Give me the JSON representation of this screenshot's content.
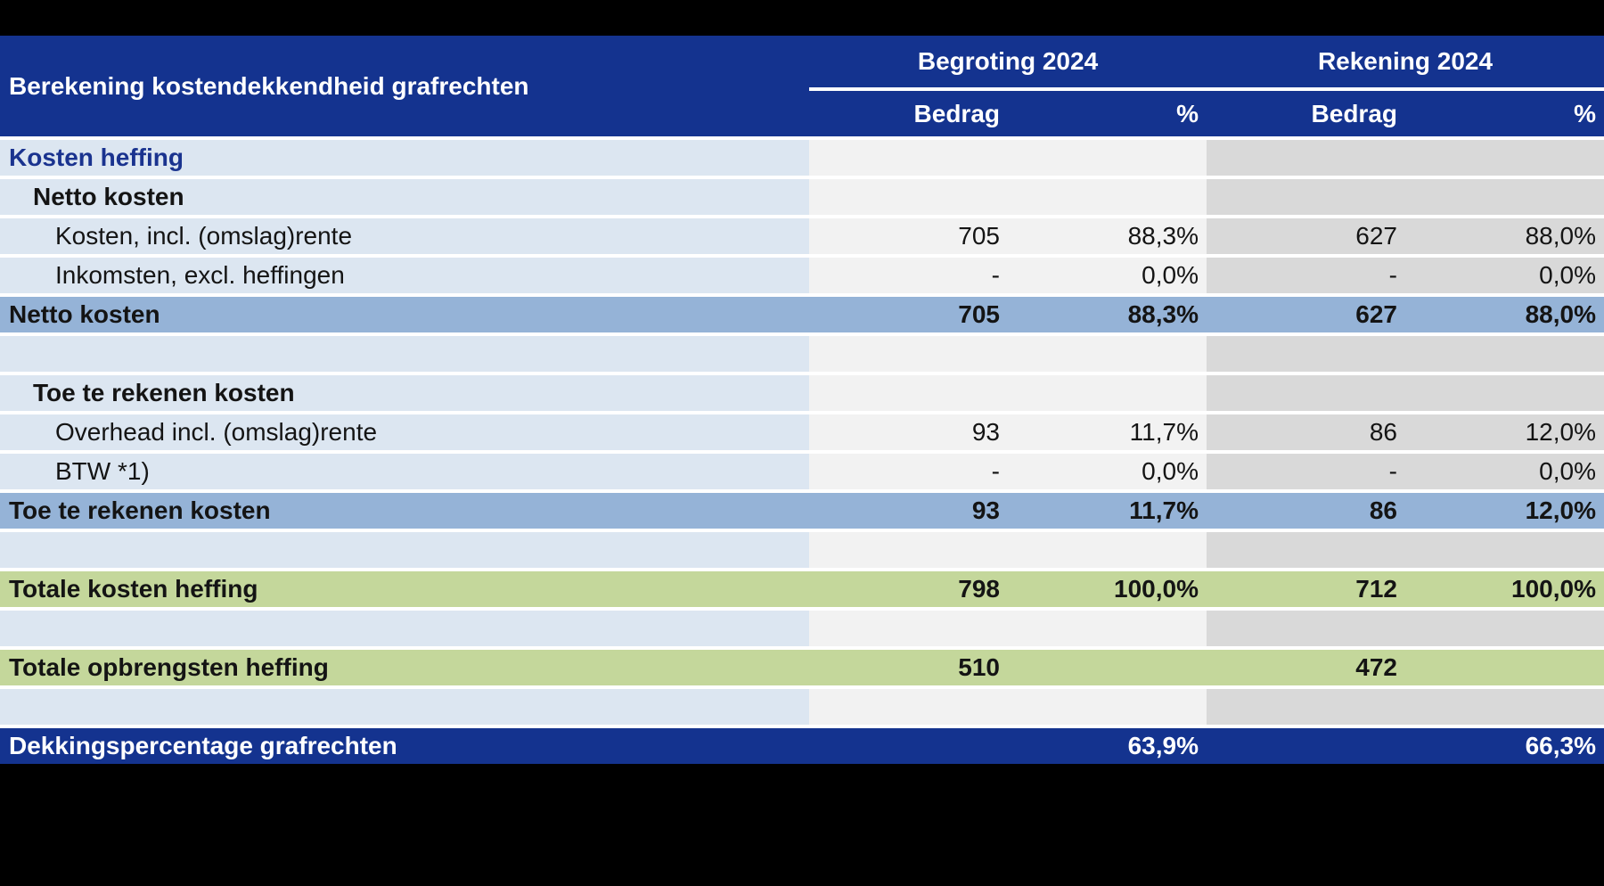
{
  "title": "Berekening kostendekkendheid grafrechten",
  "column_groups": [
    {
      "label": "Begroting 2024",
      "columns": [
        "Bedrag",
        "%"
      ]
    },
    {
      "label": "Rekening 2024",
      "columns": [
        "Bedrag",
        "%"
      ]
    }
  ],
  "rows": [
    {
      "type": "section",
      "label": "Kosten heffing",
      "indent": 0,
      "values": [
        "",
        "",
        "",
        ""
      ]
    },
    {
      "type": "subheader",
      "label": "Netto kosten",
      "indent": 1,
      "values": [
        "",
        "",
        "",
        ""
      ]
    },
    {
      "type": "detail",
      "label": "Kosten, incl. (omslag)rente",
      "indent": 2,
      "values": [
        "705",
        "88,3%",
        "627",
        "88,0%"
      ]
    },
    {
      "type": "detail",
      "label": "Inkomsten, excl. heffingen",
      "indent": 2,
      "values": [
        "-",
        "0,0%",
        "-",
        "0,0%"
      ]
    },
    {
      "type": "total-blue",
      "label": "Netto kosten",
      "indent": 0,
      "values": [
        "705",
        "88,3%",
        "627",
        "88,0%"
      ]
    },
    {
      "type": "empty",
      "label": "",
      "indent": 0,
      "values": [
        "",
        "",
        "",
        ""
      ]
    },
    {
      "type": "subheader",
      "label": "Toe te rekenen kosten",
      "indent": 1,
      "values": [
        "",
        "",
        "",
        ""
      ]
    },
    {
      "type": "detail",
      "label": "Overhead incl. (omslag)rente",
      "indent": 2,
      "values": [
        "93",
        "11,7%",
        "86",
        "12,0%"
      ]
    },
    {
      "type": "detail",
      "label": "BTW *1)",
      "indent": 2,
      "values": [
        "-",
        "0,0%",
        "-",
        "0,0%"
      ]
    },
    {
      "type": "total-blue",
      "label": "Toe te rekenen kosten",
      "indent": 0,
      "values": [
        "93",
        "11,7%",
        "86",
        "12,0%"
      ]
    },
    {
      "type": "empty",
      "label": "",
      "indent": 0,
      "values": [
        "",
        "",
        "",
        ""
      ]
    },
    {
      "type": "total-green",
      "label": "Totale kosten heffing",
      "indent": 0,
      "values": [
        "798",
        "100,0%",
        "712",
        "100,0%"
      ]
    },
    {
      "type": "empty",
      "label": "",
      "indent": 0,
      "values": [
        "",
        "",
        "",
        ""
      ]
    },
    {
      "type": "total-green",
      "label": "Totale opbrengsten heffing",
      "indent": 0,
      "values": [
        "510",
        "",
        "472",
        ""
      ]
    },
    {
      "type": "empty",
      "label": "",
      "indent": 0,
      "values": [
        "",
        "",
        "",
        ""
      ]
    },
    {
      "type": "grand-total",
      "label": "Dekkingspercentage grafrechten",
      "indent": 0,
      "values": [
        "",
        "63,9%",
        "",
        "66,3%"
      ]
    }
  ],
  "colors": {
    "page_bg": "#000000",
    "header_blue": "#14338F",
    "section_text": "#1A338F",
    "label_bg": "#DCE6F1",
    "band_blue": "#95B3D7",
    "band_green": "#C4D79B",
    "begroting_bg": "#F2F2F2",
    "rekening_bg": "#D9D9D9",
    "gap_white": "#FFFFFF",
    "text_white": "#FFFFFF"
  }
}
